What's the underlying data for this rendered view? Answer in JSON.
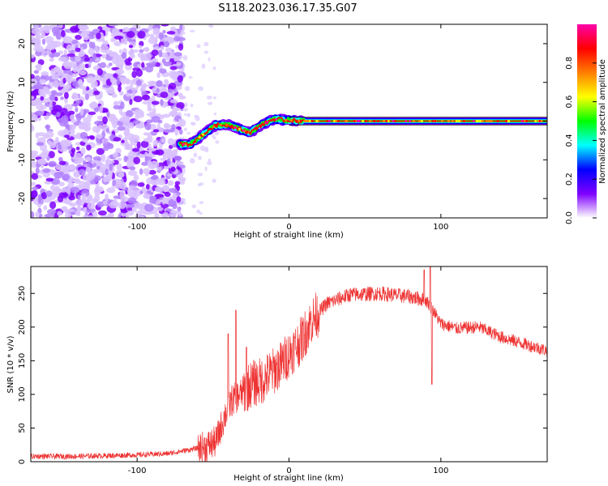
{
  "figure": {
    "title": "S118.2023.036.17.35.G07"
  },
  "chart_data": [
    {
      "type": "heatmap",
      "xlabel": "Height of straight line (km)",
      "ylabel": "Frequency (Hz)",
      "xlim": [
        -170,
        170
      ],
      "ylim": [
        -25,
        25
      ],
      "xticks": [
        -100,
        0,
        100
      ],
      "xtick_labels": [
        "-100",
        "0",
        "100"
      ],
      "yticks": [
        -20,
        -10,
        0,
        10,
        20
      ],
      "ytick_labels": [
        "-20",
        "-10",
        "0",
        "10",
        "20"
      ],
      "grid": false,
      "description_features": {
        "noise_region_x": [
          -170,
          -72
        ],
        "signal_start_x": -72,
        "signal_track": [
          {
            "x": -72,
            "y": -6
          },
          {
            "x": -65,
            "y": -6
          },
          {
            "x": -55,
            "y": -3
          },
          {
            "x": -48,
            "y": -1
          },
          {
            "x": -40,
            "y": -1
          },
          {
            "x": -33,
            "y": -2
          },
          {
            "x": -26,
            "y": -3
          },
          {
            "x": -18,
            "y": -1
          },
          {
            "x": -10,
            "y": 0.5
          },
          {
            "x": 0,
            "y": 0.2
          },
          {
            "x": 10,
            "y": 0
          },
          {
            "x": 170,
            "y": 0
          }
        ]
      },
      "colorbar": {
        "label": "Normalized spectral amplitude",
        "range": [
          0,
          1
        ],
        "ticks": [
          0.0,
          0.2,
          0.4,
          0.6,
          0.8
        ],
        "tick_labels": [
          "0.0",
          "0.2",
          "0.4",
          "0.6",
          "0.8"
        ],
        "colormap": [
          "#ffffff",
          "#7f00ff",
          "#0000ff",
          "#00ffff",
          "#00ff00",
          "#ffff00",
          "#ff7f00",
          "#ff0000",
          "#ff00aa"
        ]
      }
    },
    {
      "type": "line",
      "xlabel": "Height of straight line (km)",
      "ylabel": "SNR (10 * v/v)",
      "xlim": [
        -170,
        170
      ],
      "ylim": [
        0,
        290
      ],
      "xticks": [
        -100,
        0,
        100
      ],
      "xtick_labels": [
        "-100",
        "0",
        "100"
      ],
      "yticks": [
        0,
        50,
        100,
        150,
        200,
        250
      ],
      "ytick_labels": [
        "0",
        "50",
        "100",
        "150",
        "200",
        "250"
      ],
      "grid": false,
      "series": [
        {
          "color": "#ee3333",
          "envelope": [
            {
              "x": -170,
              "y": 8
            },
            {
              "x": -140,
              "y": 8
            },
            {
              "x": -100,
              "y": 10
            },
            {
              "x": -80,
              "y": 12
            },
            {
              "x": -65,
              "y": 18
            },
            {
              "x": -55,
              "y": 22
            },
            {
              "x": -48,
              "y": 30
            },
            {
              "x": -42,
              "y": 70
            },
            {
              "x": -38,
              "y": 90
            },
            {
              "x": -32,
              "y": 100
            },
            {
              "x": -25,
              "y": 115
            },
            {
              "x": -18,
              "y": 120
            },
            {
              "x": -10,
              "y": 135
            },
            {
              "x": -5,
              "y": 145
            },
            {
              "x": 0,
              "y": 160
            },
            {
              "x": 8,
              "y": 180
            },
            {
              "x": 15,
              "y": 210
            },
            {
              "x": 25,
              "y": 235
            },
            {
              "x": 40,
              "y": 248
            },
            {
              "x": 60,
              "y": 250
            },
            {
              "x": 80,
              "y": 245
            },
            {
              "x": 90,
              "y": 240
            },
            {
              "x": 95,
              "y": 225
            },
            {
              "x": 100,
              "y": 205
            },
            {
              "x": 110,
              "y": 198
            },
            {
              "x": 125,
              "y": 200
            },
            {
              "x": 140,
              "y": 185
            },
            {
              "x": 155,
              "y": 175
            },
            {
              "x": 170,
              "y": 165
            }
          ],
          "spikes": [
            {
              "x": -40,
              "y": 190
            },
            {
              "x": -35,
              "y": 225
            },
            {
              "x": -28,
              "y": 170
            },
            {
              "x": 93,
              "y": 290
            },
            {
              "x": 94,
              "y": 115
            },
            {
              "x": 89,
              "y": 285
            }
          ]
        }
      ]
    }
  ]
}
